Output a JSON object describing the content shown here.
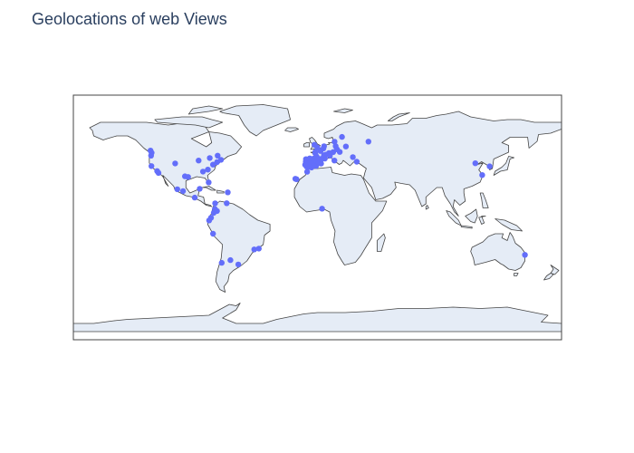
{
  "title": "Geolocations of web Views",
  "map": {
    "projection": "equirectangular",
    "land_color": "#e5ecf6",
    "coastline_color": "#444444",
    "frame_color": "#444444",
    "marker_color": "#636efa",
    "lat_range": [
      -90,
      90
    ],
    "lon_range": [
      -180,
      180
    ]
  },
  "chart_data": {
    "type": "scatter",
    "title": "Geolocations of web Views",
    "projection": "equirectangular",
    "series": [
      {
        "marker_color": "#636efa",
        "points": [
          {
            "lat": 49.2,
            "lon": -123.1
          },
          {
            "lat": 47.6,
            "lon": -122.3
          },
          {
            "lat": 45.5,
            "lon": -122.7
          },
          {
            "lat": 37.8,
            "lon": -122.4
          },
          {
            "lat": 34.1,
            "lon": -118.2
          },
          {
            "lat": 32.7,
            "lon": -117.2
          },
          {
            "lat": 41.9,
            "lon": -87.6
          },
          {
            "lat": 39.7,
            "lon": -104.9
          },
          {
            "lat": 33.7,
            "lon": -84.4
          },
          {
            "lat": 43.7,
            "lon": -79.4
          },
          {
            "lat": 45.5,
            "lon": -73.6
          },
          {
            "lat": 42.4,
            "lon": -71.1
          },
          {
            "lat": 40.7,
            "lon": -74.0
          },
          {
            "lat": 38.9,
            "lon": -77.0
          },
          {
            "lat": 35.2,
            "lon": -80.8
          },
          {
            "lat": 29.8,
            "lon": -95.4
          },
          {
            "lat": 30.3,
            "lon": -97.7
          },
          {
            "lat": 25.8,
            "lon": -80.2
          },
          {
            "lat": 19.4,
            "lon": -99.1
          },
          {
            "lat": 20.7,
            "lon": -103.3
          },
          {
            "lat": 21.1,
            "lon": -86.8
          },
          {
            "lat": 18.5,
            "lon": -66.1
          },
          {
            "lat": 14.6,
            "lon": -90.5
          },
          {
            "lat": 10.5,
            "lon": -66.9
          },
          {
            "lat": 10.4,
            "lon": -75.5
          },
          {
            "lat": 4.7,
            "lon": -74.1
          },
          {
            "lat": 6.2,
            "lon": -75.6
          },
          {
            "lat": 3.4,
            "lon": -76.5
          },
          {
            "lat": -0.2,
            "lon": -78.5
          },
          {
            "lat": -2.2,
            "lon": -79.9
          },
          {
            "lat": -12.0,
            "lon": -77.0
          },
          {
            "lat": -23.5,
            "lon": -46.6
          },
          {
            "lat": -22.9,
            "lon": -43.2
          },
          {
            "lat": -31.4,
            "lon": -64.2
          },
          {
            "lat": -34.6,
            "lon": -58.4
          },
          {
            "lat": -33.4,
            "lon": -70.6
          },
          {
            "lat": 51.5,
            "lon": -0.1
          },
          {
            "lat": 53.5,
            "lon": -2.2
          },
          {
            "lat": 48.9,
            "lon": 2.3
          },
          {
            "lat": 52.4,
            "lon": 4.9
          },
          {
            "lat": 50.8,
            "lon": 4.4
          },
          {
            "lat": 52.5,
            "lon": 13.4
          },
          {
            "lat": 48.1,
            "lon": 11.6
          },
          {
            "lat": 47.4,
            "lon": 8.5
          },
          {
            "lat": 45.5,
            "lon": 9.2
          },
          {
            "lat": 41.9,
            "lon": 12.5
          },
          {
            "lat": 40.4,
            "lon": -3.7
          },
          {
            "lat": 41.4,
            "lon": 2.2
          },
          {
            "lat": 39.5,
            "lon": -0.4
          },
          {
            "lat": 37.4,
            "lon": -6.0
          },
          {
            "lat": 36.7,
            "lon": -4.4
          },
          {
            "lat": 43.3,
            "lon": -2.9
          },
          {
            "lat": 42.9,
            "lon": -8.5
          },
          {
            "lat": 41.6,
            "lon": -4.7
          },
          {
            "lat": 38.7,
            "lon": -9.1
          },
          {
            "lat": 41.1,
            "lon": -8.6
          },
          {
            "lat": 39.6,
            "lon": 2.7
          },
          {
            "lat": 43.5,
            "lon": -5.7
          },
          {
            "lat": 37.9,
            "lon": -1.1
          },
          {
            "lat": 40.0,
            "lon": -6.0
          },
          {
            "lat": 42.0,
            "lon": 0.0
          },
          {
            "lat": 38.0,
            "lon": -3.0
          },
          {
            "lat": 40.0,
            "lon": 1.0
          },
          {
            "lat": 37.5,
            "lon": -8.0
          },
          {
            "lat": 43.0,
            "lon": 1.5
          },
          {
            "lat": 44.8,
            "lon": -0.6
          },
          {
            "lat": 43.6,
            "lon": 3.9
          },
          {
            "lat": 45.8,
            "lon": 4.8
          },
          {
            "lat": 43.3,
            "lon": 5.4
          },
          {
            "lat": 47.2,
            "lon": -1.6
          },
          {
            "lat": 48.1,
            "lon": -1.7
          },
          {
            "lat": 46.2,
            "lon": 6.1
          },
          {
            "lat": 48.2,
            "lon": 16.4
          },
          {
            "lat": 50.1,
            "lon": 14.4
          },
          {
            "lat": 52.2,
            "lon": 21.0
          },
          {
            "lat": 55.7,
            "lon": 12.6
          },
          {
            "lat": 59.3,
            "lon": 18.1
          },
          {
            "lat": 44.4,
            "lon": 26.1
          },
          {
            "lat": 41.0,
            "lon": 29.0
          },
          {
            "lat": 55.8,
            "lon": 37.6
          },
          {
            "lat": 28.1,
            "lon": -15.4
          },
          {
            "lat": 28.5,
            "lon": -16.3
          },
          {
            "lat": 33.6,
            "lon": -7.6
          },
          {
            "lat": 6.5,
            "lon": 3.4
          },
          {
            "lat": 39.9,
            "lon": 116.4
          },
          {
            "lat": 37.6,
            "lon": 127.0
          },
          {
            "lat": 31.2,
            "lon": 121.5
          },
          {
            "lat": -27.5,
            "lon": 153.0
          }
        ]
      }
    ]
  }
}
